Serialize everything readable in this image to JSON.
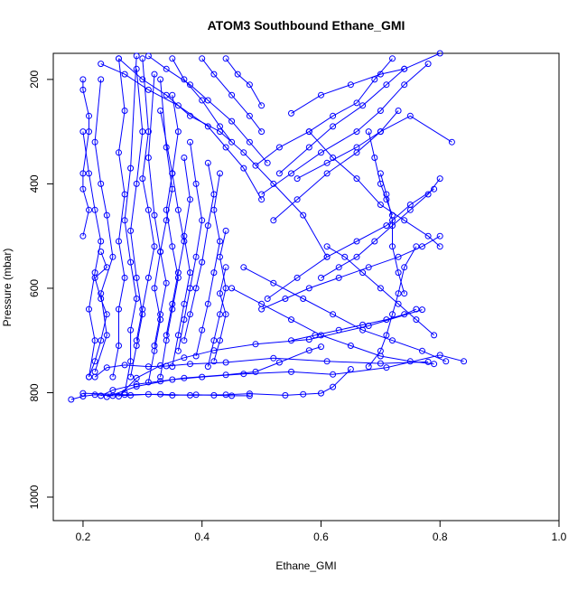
{
  "chart_data": {
    "type": "line",
    "title": "ATOM3 Southbound Ethane_GMI",
    "xlabel": "Ethane_GMI",
    "ylabel": "Pressure (mbar)",
    "xlim": [
      0.15,
      1.0
    ],
    "ylim": [
      1045,
      150
    ],
    "y_inverted": true,
    "x_ticks": [
      0.2,
      0.4,
      0.6,
      0.8,
      1.0
    ],
    "x_tick_labels": [
      "0.2",
      "0.4",
      "0.6",
      "0.8",
      "1.0"
    ],
    "y_ticks": [
      200,
      400,
      600,
      800,
      1000
    ],
    "y_tick_labels": [
      "200",
      "400",
      "600",
      "800",
      "1000"
    ],
    "marker": "open-circle",
    "grid": false,
    "legend": "none",
    "series_color": "#0000ff",
    "series": [
      {
        "x": [
          0.18,
          0.2,
          0.22,
          0.25,
          0.28,
          0.31,
          0.35,
          0.39,
          0.42,
          0.45,
          0.48
        ],
        "y": [
          813,
          807,
          804,
          806,
          805,
          803,
          805,
          804,
          805,
          806,
          806
        ]
      },
      {
        "x": [
          0.2,
          0.27,
          0.33,
          0.38,
          0.44,
          0.48,
          0.54,
          0.57,
          0.6,
          0.62,
          0.65
        ],
        "y": [
          801,
          804,
          803,
          805,
          804,
          802,
          805,
          803,
          801,
          789,
          755
        ]
      },
      {
        "x": [
          0.23,
          0.25,
          0.29,
          0.33,
          0.37,
          0.44,
          0.49,
          0.53,
          0.58,
          0.6
        ],
        "y": [
          806,
          795,
          784,
          778,
          772,
          766,
          760,
          742,
          719,
          712
        ]
      },
      {
        "x": [
          0.24,
          0.29,
          0.35,
          0.4,
          0.47,
          0.55,
          0.62,
          0.71,
          0.8,
          0.84
        ],
        "y": [
          808,
          788,
          775,
          770,
          764,
          760,
          765,
          752,
          728,
          740
        ]
      },
      {
        "x": [
          0.22,
          0.24,
          0.27,
          0.31,
          0.34,
          0.38,
          0.44,
          0.52,
          0.61,
          0.7,
          0.78
        ],
        "y": [
          770,
          752,
          747,
          750,
          749,
          745,
          742,
          734,
          740,
          744,
          741
        ]
      },
      {
        "x": [
          0.26,
          0.29,
          0.33,
          0.37,
          0.42,
          0.49,
          0.58,
          0.68,
          0.77
        ],
        "y": [
          807,
          772,
          748,
          733,
          719,
          707,
          698,
          672,
          641
        ]
      },
      {
        "x": [
          0.21,
          0.22,
          0.23,
          0.24,
          0.23,
          0.22,
          0.24,
          0.23
        ],
        "y": [
          770,
          740,
          700,
          650,
          620,
          580,
          560,
          530
        ]
      },
      {
        "x": [
          0.21,
          0.22,
          0.21,
          0.22,
          0.23,
          0.22,
          0.21,
          0.2
        ],
        "y": [
          770,
          700,
          640,
          570,
          510,
          450,
          380,
          300
        ]
      },
      {
        "x": [
          0.2,
          0.21,
          0.2,
          0.2,
          0.21,
          0.21,
          0.2,
          0.2
        ],
        "y": [
          500,
          450,
          410,
          380,
          300,
          270,
          220,
          200
        ]
      },
      {
        "x": [
          0.22,
          0.24,
          0.23,
          0.25,
          0.24,
          0.23,
          0.22,
          0.23
        ],
        "y": [
          760,
          690,
          610,
          540,
          460,
          400,
          320,
          200
        ]
      },
      {
        "x": [
          0.25,
          0.26,
          0.26,
          0.27,
          0.26,
          0.27,
          0.26,
          0.27,
          0.26
        ],
        "y": [
          770,
          710,
          640,
          580,
          510,
          420,
          340,
          260,
          160
        ]
      },
      {
        "x": [
          0.27,
          0.28,
          0.28,
          0.29,
          0.28,
          0.27,
          0.28,
          0.29
        ],
        "y": [
          800,
          740,
          680,
          620,
          550,
          470,
          370,
          155
        ]
      },
      {
        "x": [
          0.28,
          0.29,
          0.3,
          0.29,
          0.28,
          0.29,
          0.3,
          0.29
        ],
        "y": [
          770,
          710,
          650,
          580,
          490,
          400,
          300,
          180
        ]
      },
      {
        "x": [
          0.29,
          0.3,
          0.31,
          0.32,
          0.31,
          0.3,
          0.31,
          0.3
        ],
        "y": [
          700,
          640,
          580,
          520,
          450,
          390,
          300,
          160
        ]
      },
      {
        "x": [
          0.31,
          0.32,
          0.33,
          0.32,
          0.33,
          0.32,
          0.31,
          0.32
        ],
        "y": [
          780,
          720,
          660,
          600,
          530,
          460,
          350,
          190
        ]
      },
      {
        "x": [
          0.32,
          0.33,
          0.34,
          0.33,
          0.34,
          0.35,
          0.34,
          0.33
        ],
        "y": [
          710,
          650,
          590,
          530,
          470,
          410,
          330,
          200
        ]
      },
      {
        "x": [
          0.33,
          0.34,
          0.35,
          0.36,
          0.35,
          0.34,
          0.35,
          0.33
        ],
        "y": [
          770,
          700,
          640,
          580,
          520,
          450,
          380,
          260
        ]
      },
      {
        "x": [
          0.34,
          0.35,
          0.36,
          0.37,
          0.36,
          0.35,
          0.36,
          0.35
        ],
        "y": [
          690,
          630,
          570,
          510,
          450,
          380,
          300,
          230
        ]
      },
      {
        "x": [
          0.35,
          0.36,
          0.37,
          0.38,
          0.37,
          0.38,
          0.37
        ],
        "y": [
          750,
          690,
          630,
          570,
          500,
          430,
          350
        ]
      },
      {
        "x": [
          0.36,
          0.37,
          0.38,
          0.39,
          0.4,
          0.39,
          0.38
        ],
        "y": [
          720,
          660,
          600,
          540,
          470,
          400,
          320
        ]
      },
      {
        "x": [
          0.37,
          0.38,
          0.39,
          0.4,
          0.41,
          0.42,
          0.41
        ],
        "y": [
          700,
          650,
          600,
          550,
          480,
          420,
          360
        ]
      },
      {
        "x": [
          0.39,
          0.4,
          0.41,
          0.42,
          0.43,
          0.42,
          0.43
        ],
        "y": [
          730,
          680,
          630,
          570,
          510,
          450,
          380
        ]
      },
      {
        "x": [
          0.41,
          0.42,
          0.43,
          0.44,
          0.43,
          0.44
        ],
        "y": [
          750,
          700,
          650,
          600,
          540,
          490
        ]
      },
      {
        "x": [
          0.42,
          0.43,
          0.44,
          0.43,
          0.44
        ],
        "y": [
          740,
          700,
          650,
          610,
          560
        ]
      },
      {
        "x": [
          0.23,
          0.27,
          0.31,
          0.36,
          0.41,
          0.44,
          0.47,
          0.5
        ],
        "y": [
          170,
          190,
          220,
          250,
          290,
          330,
          370,
          430
        ]
      },
      {
        "x": [
          0.26,
          0.3,
          0.34,
          0.38,
          0.43,
          0.47,
          0.52,
          0.57,
          0.61
        ],
        "y": [
          160,
          200,
          230,
          270,
          300,
          340,
          400,
          460,
          540
        ]
      },
      {
        "x": [
          0.31,
          0.34,
          0.38,
          0.41,
          0.45,
          0.48,
          0.51
        ],
        "y": [
          155,
          180,
          210,
          240,
          280,
          320,
          360
        ]
      },
      {
        "x": [
          0.35,
          0.37,
          0.4,
          0.43,
          0.45
        ],
        "y": [
          160,
          200,
          240,
          290,
          320
        ]
      },
      {
        "x": [
          0.4,
          0.42,
          0.45,
          0.48,
          0.5
        ],
        "y": [
          160,
          190,
          230,
          270,
          300
        ]
      },
      {
        "x": [
          0.44,
          0.46,
          0.48,
          0.5
        ],
        "y": [
          160,
          190,
          210,
          250
        ]
      },
      {
        "x": [
          0.49,
          0.53,
          0.58,
          0.62,
          0.66,
          0.69,
          0.72
        ],
        "y": [
          365,
          330,
          300,
          270,
          245,
          200,
          160
        ]
      },
      {
        "x": [
          0.5,
          0.55,
          0.6,
          0.66,
          0.7,
          0.74,
          0.78
        ],
        "y": [
          420,
          380,
          340,
          300,
          260,
          210,
          170
        ]
      },
      {
        "x": [
          0.52,
          0.56,
          0.61,
          0.66,
          0.7,
          0.73
        ],
        "y": [
          470,
          430,
          380,
          340,
          300,
          260
        ]
      },
      {
        "x": [
          0.53,
          0.58,
          0.62,
          0.67,
          0.71,
          0.74
        ],
        "y": [
          380,
          330,
          290,
          250,
          210,
          180
        ]
      },
      {
        "x": [
          0.55,
          0.6,
          0.65,
          0.7,
          0.74,
          0.8
        ],
        "y": [
          265,
          230,
          210,
          190,
          180,
          150
        ]
      },
      {
        "x": [
          0.56,
          0.61,
          0.66,
          0.7,
          0.75,
          0.82
        ],
        "y": [
          390,
          360,
          330,
          300,
          270,
          320
        ]
      },
      {
        "x": [
          0.58,
          0.62,
          0.66,
          0.7,
          0.74,
          0.78,
          0.8
        ],
        "y": [
          300,
          350,
          390,
          440,
          470,
          500,
          520
        ]
      },
      {
        "x": [
          0.51,
          0.56,
          0.61,
          0.66,
          0.71,
          0.75,
          0.79
        ],
        "y": [
          620,
          580,
          540,
          510,
          480,
          440,
          410
        ]
      },
      {
        "x": [
          0.5,
          0.54,
          0.58,
          0.63,
          0.68,
          0.73,
          0.77,
          0.8
        ],
        "y": [
          640,
          620,
          600,
          580,
          560,
          540,
          520,
          500
        ]
      },
      {
        "x": [
          0.47,
          0.52,
          0.57,
          0.62,
          0.67,
          0.72,
          0.77,
          0.81
        ],
        "y": [
          560,
          590,
          620,
          650,
          680,
          700,
          720,
          740
        ]
      },
      {
        "x": [
          0.45,
          0.5,
          0.55,
          0.6,
          0.65,
          0.7,
          0.75,
          0.79
        ],
        "y": [
          600,
          630,
          660,
          690,
          710,
          730,
          740,
          745
        ]
      },
      {
        "x": [
          0.55,
          0.59,
          0.63,
          0.67,
          0.71,
          0.74,
          0.76
        ],
        "y": [
          700,
          690,
          680,
          670,
          660,
          650,
          640
        ]
      },
      {
        "x": [
          0.6,
          0.63,
          0.66,
          0.69,
          0.72,
          0.75,
          0.78,
          0.8
        ],
        "y": [
          580,
          560,
          540,
          510,
          480,
          450,
          420,
          390
        ]
      },
      {
        "x": [
          0.61,
          0.64,
          0.67,
          0.7,
          0.73,
          0.76,
          0.79
        ],
        "y": [
          520,
          540,
          570,
          600,
          630,
          660,
          690
        ]
      },
      {
        "x": [
          0.68,
          0.7,
          0.71,
          0.72,
          0.73,
          0.74,
          0.76
        ],
        "y": [
          750,
          720,
          690,
          650,
          610,
          560,
          520
        ]
      },
      {
        "x": [
          0.7,
          0.71,
          0.72,
          0.72,
          0.73,
          0.74
        ],
        "y": [
          380,
          420,
          470,
          520,
          570,
          610
        ]
      },
      {
        "x": [
          0.68,
          0.69,
          0.7,
          0.71,
          0.72
        ],
        "y": [
          300,
          350,
          400,
          430,
          460
        ]
      }
    ]
  }
}
